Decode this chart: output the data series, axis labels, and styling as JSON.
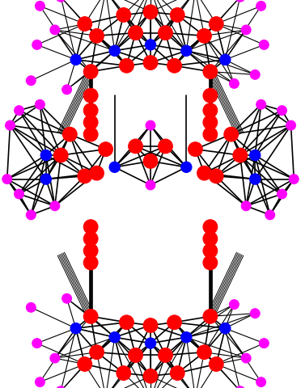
{
  "bg_color": "#ffffff",
  "figsize": [
    3.72,
    4.8
  ],
  "dpi": 100,
  "atom_colors": {
    "Mo": "#0000ff",
    "Sb": "#ff0000",
    "Se": "#ff00ff"
  },
  "atom_radii": {
    "Mo": 0.18,
    "Sb": 0.24,
    "Se": 0.16
  },
  "bond_color": "#000000",
  "bond_lw": 1.2,
  "xlim": [
    0,
    10
  ],
  "ylim": [
    0,
    13
  ]
}
